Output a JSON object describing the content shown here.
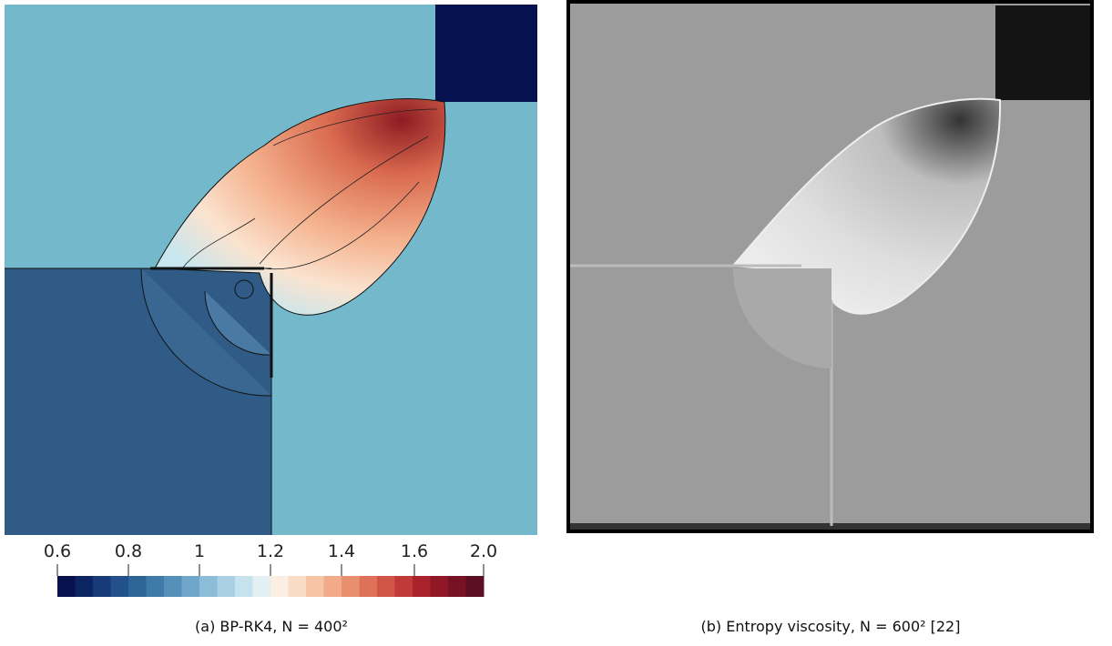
{
  "panel_a": {
    "colorbar": {
      "ticks": [
        "0.6",
        "0.8",
        "1",
        "1.2",
        "1.4",
        "1.6",
        "2.0"
      ]
    },
    "caption": "(a) BP-RK4, N = 400²"
  },
  "panel_b": {
    "caption": "(b) Entropy viscosity, N = 600² [22]"
  }
}
